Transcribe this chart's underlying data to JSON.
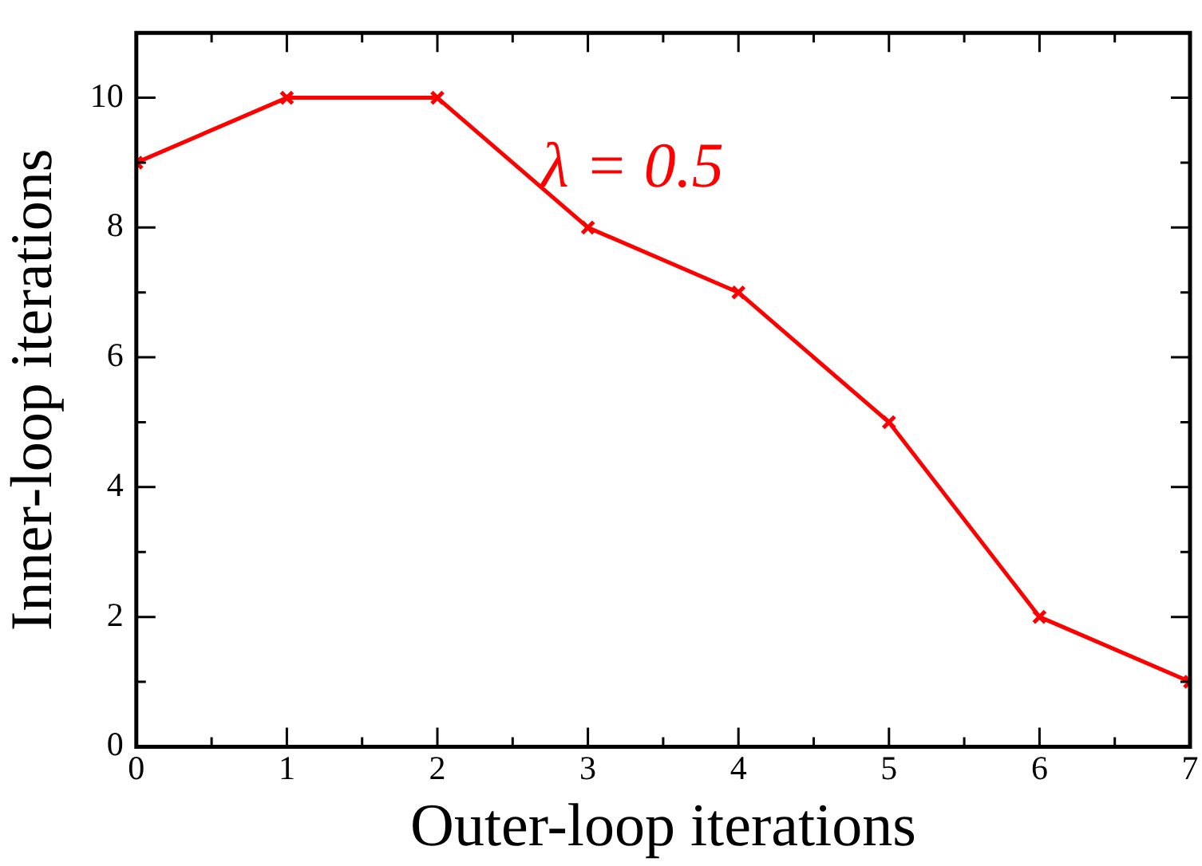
{
  "chart_data": {
    "type": "line",
    "xlabel": "Outer-loop iterations",
    "ylabel": "Inner-loop iterations",
    "x": [
      0,
      1,
      2,
      3,
      4,
      5,
      6,
      7
    ],
    "series": [
      {
        "name": "λ = 0.5",
        "color": "#ff0000",
        "values": [
          9,
          10,
          10,
          8,
          7,
          5,
          2,
          1
        ]
      }
    ],
    "xlim": [
      0,
      7
    ],
    "xticks": [
      0,
      1,
      2,
      3,
      4,
      5,
      6,
      7
    ],
    "ylim": [
      0,
      11
    ],
    "yticks": [
      0,
      2,
      4,
      6,
      8,
      10
    ],
    "grid": false,
    "legend": false,
    "marker": "cross",
    "line_style": "solid"
  }
}
